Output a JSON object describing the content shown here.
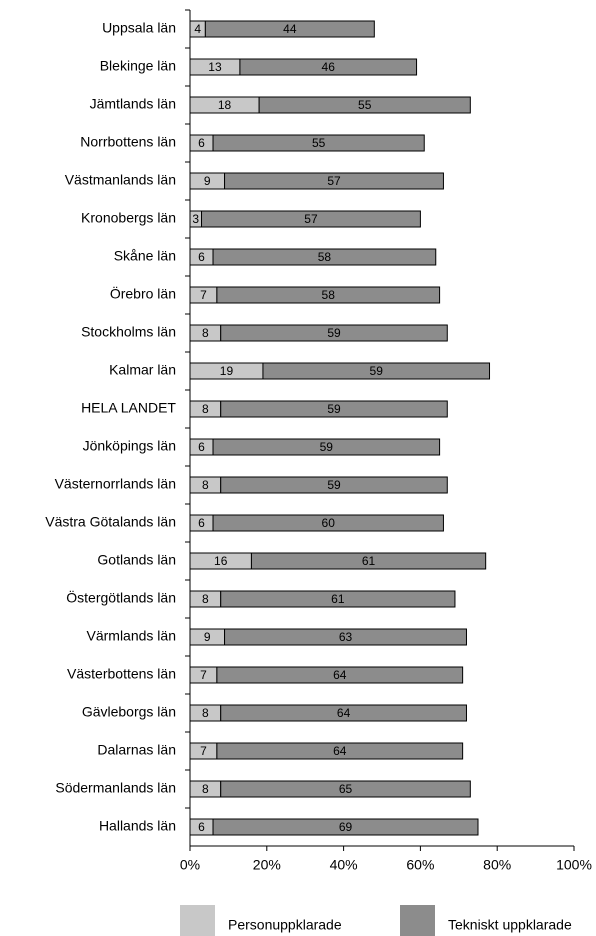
{
  "chart_data": {
    "type": "stacked-bar-horizontal",
    "categories": [
      "Uppsala län",
      "Blekinge län",
      "Jämtlands län",
      "Norrbottens län",
      "Västmanlands län",
      "Kronobergs län",
      "Skåne län",
      "Örebro län",
      "Stockholms län",
      "Kalmar län",
      "HELA LANDET",
      "Jönköpings län",
      "Västernorrlands län",
      "Västra Götalands län",
      "Gotlands län",
      "Östergötlands län",
      "Värmlands län",
      "Västerbottens län",
      "Gävleborgs län",
      "Dalarnas län",
      "Södermanlands län",
      "Hallands län"
    ],
    "series": [
      {
        "name": "Personuppklarade",
        "color": "#c8c8c8",
        "values": [
          4,
          13,
          18,
          6,
          9,
          3,
          6,
          7,
          8,
          19,
          8,
          6,
          8,
          6,
          16,
          8,
          9,
          7,
          8,
          7,
          8,
          6
        ]
      },
      {
        "name": "Tekniskt uppklarade",
        "color": "#8c8c8c",
        "values": [
          44,
          46,
          55,
          55,
          57,
          57,
          58,
          58,
          59,
          59,
          59,
          59,
          59,
          60,
          61,
          61,
          63,
          64,
          64,
          64,
          65,
          69
        ]
      }
    ],
    "xlim": [
      0,
      100
    ],
    "xticks": [
      {
        "value": 0,
        "label": "0%"
      },
      {
        "value": 20,
        "label": "20%"
      },
      {
        "value": 40,
        "label": "40%"
      },
      {
        "value": 60,
        "label": "60%"
      },
      {
        "value": 80,
        "label": "80%"
      },
      {
        "value": 100,
        "label": "100%"
      }
    ],
    "legend": "bottom"
  }
}
